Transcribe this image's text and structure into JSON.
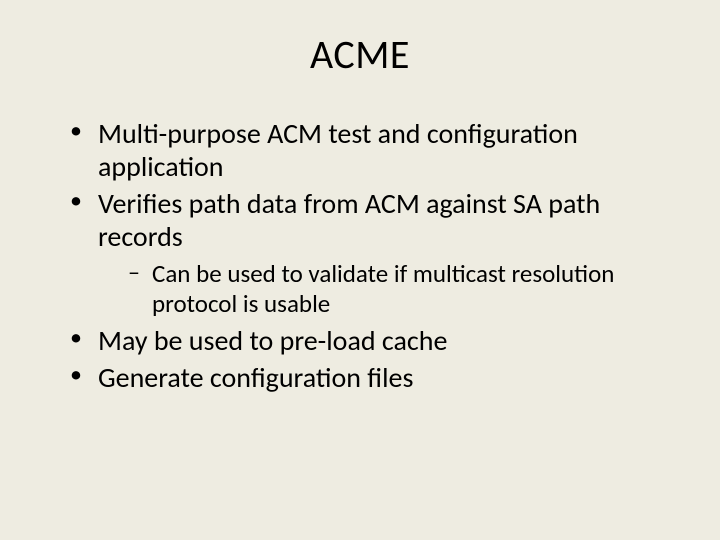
{
  "background_color": "#eeece1",
  "text_color": "#000000",
  "font_family": "Calibri",
  "title": {
    "text": "ACME",
    "fontsize": 40,
    "align": "center"
  },
  "bullets": [
    {
      "text": "Multi-purpose ACM test and configuration application",
      "level": 1
    },
    {
      "text": "Verifies path data from ACM against SA path records",
      "level": 1,
      "children": [
        {
          "text": "Can be used to validate if multicast resolution protocol is usable",
          "level": 2
        }
      ]
    },
    {
      "text": "May be used to pre-load cache",
      "level": 1
    },
    {
      "text": "Generate configuration files",
      "level": 1
    }
  ],
  "level1_fontsize": 28,
  "level2_fontsize": 25,
  "bullet_char_level1": "•",
  "bullet_char_level2": "–"
}
